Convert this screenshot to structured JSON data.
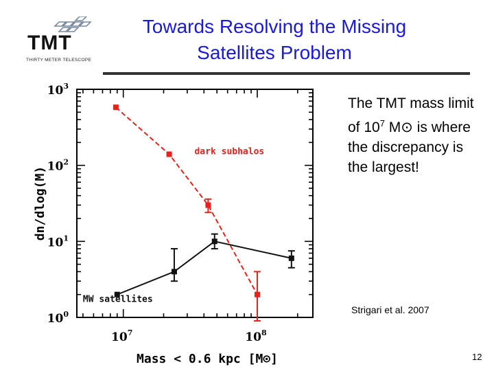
{
  "slide": {
    "title_line1": "Towards Resolving the Missing",
    "title_line2": "Satellites Problem",
    "logo_text": "TMT",
    "logo_subtext": "THIRTY METER TELESCOPE",
    "body_part1": "The TMT mass limit of 10",
    "body_sup": "7",
    "body_part2": " M",
    "body_symbol": "⊙",
    "body_part3": " is where the discrepancy is the largest!",
    "citation": "Strigari et al. 2007",
    "page_number": "12",
    "title_color": "#1a1adc"
  },
  "chart_data": {
    "type": "line",
    "xscale": "log",
    "yscale": "log",
    "xlim": [
      4500000,
      260000000
    ],
    "ylim": [
      1,
      1000
    ],
    "xlabel": "Mass < 0.6 kpc [M⊙]",
    "ylabel": "dn/dlog(M)",
    "xticks": [
      {
        "value": 10000000,
        "base": "10",
        "exp": "7"
      },
      {
        "value": 100000000,
        "base": "10",
        "exp": "8"
      }
    ],
    "yticks": [
      {
        "value": 1,
        "base": "10",
        "exp": "0"
      },
      {
        "value": 10,
        "base": "10",
        "exp": "1"
      },
      {
        "value": 100,
        "base": "10",
        "exp": "2"
      },
      {
        "value": 1000,
        "base": "10",
        "exp": "3"
      }
    ],
    "series": [
      {
        "name": "dark subhalos",
        "color": "#e8211b",
        "dashed": true,
        "x": [
          8800000,
          22000000,
          43000000,
          100000000
        ],
        "y": [
          580,
          140,
          30,
          2
        ],
        "err_low": [
          null,
          null,
          24,
          0.9
        ],
        "err_high": [
          null,
          null,
          36,
          4
        ]
      },
      {
        "name": "MW satellites",
        "color": "#111111",
        "dashed": false,
        "x": [
          9000000,
          24000000,
          48000000,
          180000000
        ],
        "y": [
          2,
          4,
          10,
          6
        ],
        "err_low": [
          null,
          3,
          8,
          4.5
        ],
        "err_high": [
          null,
          8,
          12.5,
          7.5
        ]
      }
    ],
    "annotations": [
      {
        "text": "dark subhalos",
        "color": "#e8211b",
        "x": 34000000,
        "y": 140
      },
      {
        "text": "MW satellites",
        "color": "#111111",
        "x": 5000000,
        "y": 1.6
      }
    ]
  }
}
